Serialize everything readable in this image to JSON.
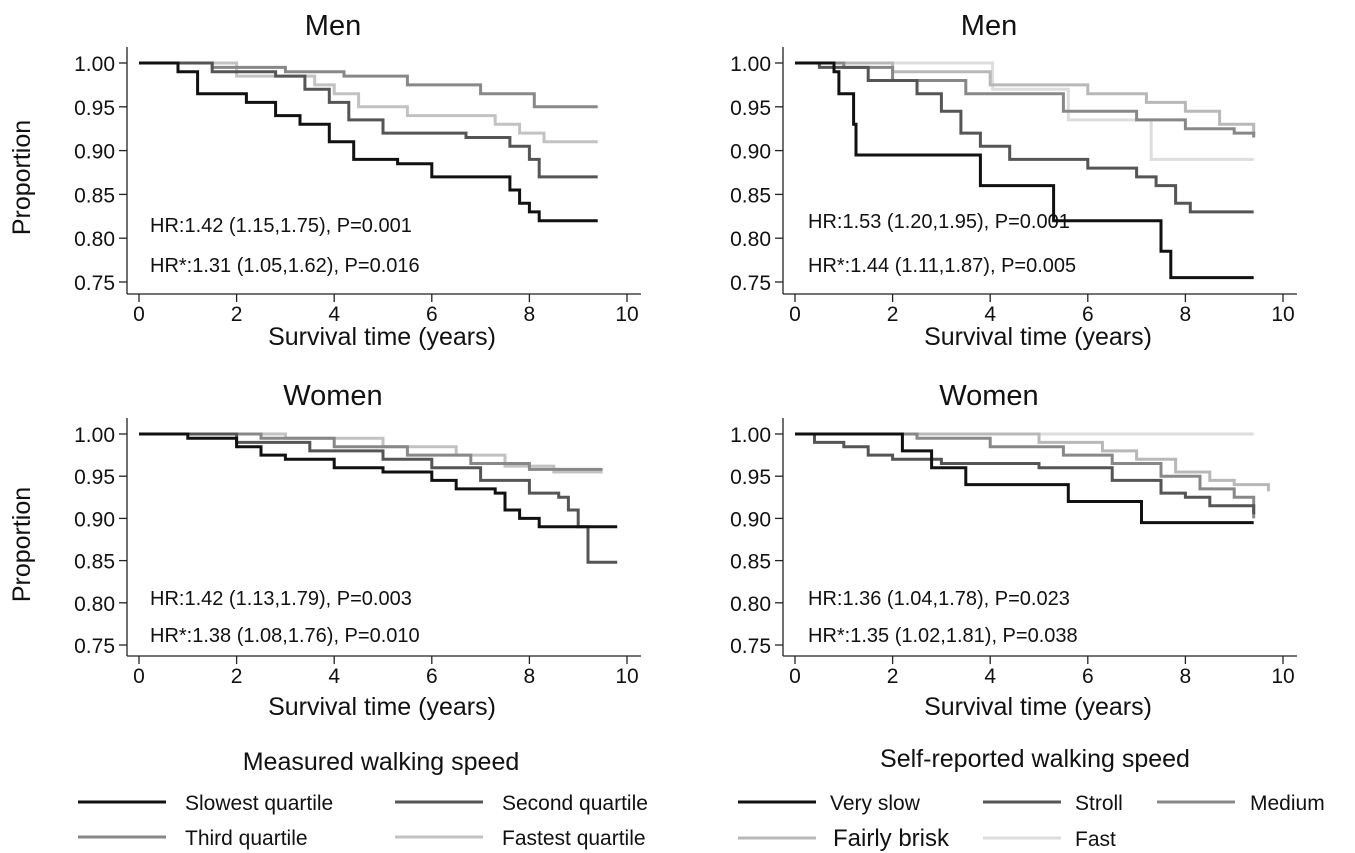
{
  "chart_data": [
    {
      "type": "line",
      "title": "Men",
      "xlabel": "Survival time (years)",
      "ylabel": "Proportion",
      "xlim": [
        0,
        10
      ],
      "ylim": [
        0.75,
        1.0
      ],
      "xticks": [
        "0",
        "2",
        "4",
        "6",
        "8",
        "10"
      ],
      "yticks": [
        "0.75",
        "0.80",
        "0.85",
        "0.90",
        "0.95",
        "1.00"
      ],
      "annotations": [
        "HR:1.42 (1.15,1.75), P=0.001",
        "HR*:1.31 (1.05,1.62), P=0.016"
      ],
      "series": [
        {
          "name": "Slowest quartile",
          "color": "#111111",
          "points": [
            [
              0,
              1.0
            ],
            [
              0.8,
              0.99
            ],
            [
              1.2,
              0.965
            ],
            [
              2.2,
              0.955
            ],
            [
              2.8,
              0.94
            ],
            [
              3.3,
              0.93
            ],
            [
              3.9,
              0.91
            ],
            [
              4.4,
              0.89
            ],
            [
              5.3,
              0.885
            ],
            [
              6.0,
              0.87
            ],
            [
              7.2,
              0.87
            ],
            [
              7.6,
              0.855
            ],
            [
              7.8,
              0.84
            ],
            [
              8.0,
              0.83
            ],
            [
              8.2,
              0.82
            ],
            [
              9.4,
              0.82
            ]
          ]
        },
        {
          "name": "Second quartile",
          "color": "#555555",
          "points": [
            [
              0,
              1.0
            ],
            [
              1.5,
              0.99
            ],
            [
              2.8,
              0.985
            ],
            [
              3.4,
              0.97
            ],
            [
              3.9,
              0.955
            ],
            [
              4.3,
              0.935
            ],
            [
              5.0,
              0.92
            ],
            [
              6.7,
              0.915
            ],
            [
              7.6,
              0.905
            ],
            [
              8.0,
              0.89
            ],
            [
              8.2,
              0.87
            ],
            [
              9.4,
              0.87
            ]
          ]
        },
        {
          "name": "Third quartile",
          "color": "#888888",
          "points": [
            [
              0,
              1.0
            ],
            [
              1.5,
              0.995
            ],
            [
              3.0,
              0.99
            ],
            [
              4.2,
              0.985
            ],
            [
              5.5,
              0.975
            ],
            [
              7.0,
              0.965
            ],
            [
              8.1,
              0.95
            ],
            [
              9.4,
              0.95
            ]
          ]
        },
        {
          "name": "Fastest quartile",
          "color": "#c2c2c2",
          "points": [
            [
              0,
              1.0
            ],
            [
              2.0,
              0.985
            ],
            [
              3.6,
              0.975
            ],
            [
              4.0,
              0.965
            ],
            [
              4.5,
              0.95
            ],
            [
              5.5,
              0.94
            ],
            [
              7.3,
              0.93
            ],
            [
              7.8,
              0.92
            ],
            [
              8.3,
              0.91
            ],
            [
              9.4,
              0.91
            ]
          ]
        }
      ]
    },
    {
      "type": "line",
      "title": "Men",
      "xlabel": "Survival time (years)",
      "ylabel": "",
      "xlim": [
        0,
        10
      ],
      "ylim": [
        0.75,
        1.0
      ],
      "xticks": [
        "0",
        "2",
        "4",
        "6",
        "8",
        "10"
      ],
      "yticks": [
        "0.75",
        "0.80",
        "0.85",
        "0.90",
        "0.95",
        "1.00"
      ],
      "annotations": [
        "HR:1.53 (1.20,1.95), P=0.001",
        "HR*:1.44 (1.11,1.87), P=0.005"
      ],
      "series": [
        {
          "name": "Very slow",
          "color": "#111111",
          "points": [
            [
              0,
              1.0
            ],
            [
              0.8,
              0.99
            ],
            [
              0.9,
              0.965
            ],
            [
              1.2,
              0.93
            ],
            [
              1.25,
              0.895
            ],
            [
              3.7,
              0.895
            ],
            [
              3.8,
              0.86
            ],
            [
              5.2,
              0.86
            ],
            [
              5.3,
              0.82
            ],
            [
              7.4,
              0.82
            ],
            [
              7.5,
              0.785
            ],
            [
              7.7,
              0.755
            ],
            [
              9.4,
              0.755
            ]
          ]
        },
        {
          "name": "Stroll",
          "color": "#555555",
          "points": [
            [
              0,
              1.0
            ],
            [
              0.5,
              0.995
            ],
            [
              1.5,
              0.98
            ],
            [
              2.5,
              0.965
            ],
            [
              3.0,
              0.945
            ],
            [
              3.4,
              0.92
            ],
            [
              3.8,
              0.905
            ],
            [
              4.4,
              0.89
            ],
            [
              6.0,
              0.88
            ],
            [
              7.0,
              0.87
            ],
            [
              7.4,
              0.86
            ],
            [
              7.8,
              0.84
            ],
            [
              8.1,
              0.83
            ],
            [
              9.4,
              0.83
            ]
          ]
        },
        {
          "name": "Medium",
          "color": "#888888",
          "points": [
            [
              0,
              1.0
            ],
            [
              1.0,
              0.995
            ],
            [
              2.0,
              0.98
            ],
            [
              3.5,
              0.965
            ],
            [
              5.5,
              0.945
            ],
            [
              7.0,
              0.935
            ],
            [
              8.0,
              0.925
            ],
            [
              9.0,
              0.92
            ],
            [
              9.4,
              0.915
            ]
          ]
        },
        {
          "name": "Fairly brisk",
          "color": "#b8b8b8",
          "points": [
            [
              0,
              1.0
            ],
            [
              2.0,
              0.99
            ],
            [
              4.0,
              0.975
            ],
            [
              6.0,
              0.965
            ],
            [
              7.2,
              0.955
            ],
            [
              8.0,
              0.945
            ],
            [
              8.7,
              0.93
            ],
            [
              9.4,
              0.918
            ]
          ]
        },
        {
          "name": "Fast",
          "color": "#dddddd",
          "points": [
            [
              0,
              1.0
            ],
            [
              4.05,
              1.0
            ],
            [
              4.05,
              0.97
            ],
            [
              5.6,
              0.97
            ],
            [
              5.6,
              0.935
            ],
            [
              7.3,
              0.935
            ],
            [
              7.3,
              0.89
            ],
            [
              9.4,
              0.89
            ]
          ]
        }
      ]
    },
    {
      "type": "line",
      "title": "Women",
      "xlabel": "Survival time (years)",
      "ylabel": "Proportion",
      "xlim": [
        0,
        10
      ],
      "ylim": [
        0.75,
        1.0
      ],
      "xticks": [
        "0",
        "2",
        "4",
        "6",
        "8",
        "10"
      ],
      "yticks": [
        "0.75",
        "0.80",
        "0.85",
        "0.90",
        "0.95",
        "1.00"
      ],
      "annotations": [
        "HR:1.42 (1.13,1.79), P=0.003",
        "HR*:1.38 (1.08,1.76), P=0.010"
      ],
      "series": [
        {
          "name": "Slowest quartile",
          "color": "#111111",
          "points": [
            [
              0,
              1.0
            ],
            [
              1.0,
              0.995
            ],
            [
              2.0,
              0.985
            ],
            [
              2.5,
              0.975
            ],
            [
              3.0,
              0.97
            ],
            [
              4.0,
              0.96
            ],
            [
              5.0,
              0.955
            ],
            [
              6.0,
              0.945
            ],
            [
              6.5,
              0.935
            ],
            [
              7.3,
              0.93
            ],
            [
              7.5,
              0.91
            ],
            [
              7.8,
              0.9
            ],
            [
              8.2,
              0.89
            ],
            [
              9.8,
              0.89
            ]
          ]
        },
        {
          "name": "Second quartile",
          "color": "#555555",
          "points": [
            [
              0,
              1.0
            ],
            [
              2.0,
              0.99
            ],
            [
              3.5,
              0.98
            ],
            [
              5.0,
              0.97
            ],
            [
              6.0,
              0.96
            ],
            [
              7.0,
              0.945
            ],
            [
              8.0,
              0.93
            ],
            [
              8.6,
              0.925
            ],
            [
              8.8,
              0.91
            ],
            [
              9.0,
              0.89
            ],
            [
              9.2,
              0.848
            ],
            [
              9.8,
              0.848
            ]
          ]
        },
        {
          "name": "Third quartile",
          "color": "#888888",
          "points": [
            [
              0,
              1.0
            ],
            [
              2.5,
              0.995
            ],
            [
              4.0,
              0.985
            ],
            [
              5.5,
              0.975
            ],
            [
              6.8,
              0.965
            ],
            [
              8.0,
              0.958
            ],
            [
              9.5,
              0.958
            ]
          ]
        },
        {
          "name": "Fastest quartile",
          "color": "#c2c2c2",
          "points": [
            [
              0,
              1.0
            ],
            [
              3.0,
              0.995
            ],
            [
              5.0,
              0.985
            ],
            [
              6.5,
              0.975
            ],
            [
              7.5,
              0.962
            ],
            [
              8.5,
              0.955
            ],
            [
              9.5,
              0.955
            ]
          ]
        }
      ]
    },
    {
      "type": "line",
      "title": "Women",
      "xlabel": "Survival time (years)",
      "ylabel": "",
      "xlim": [
        0,
        10
      ],
      "ylim": [
        0.75,
        1.0
      ],
      "xticks": [
        "0",
        "2",
        "4",
        "6",
        "8",
        "10"
      ],
      "yticks": [
        "0.75",
        "0.80",
        "0.85",
        "0.90",
        "0.95",
        "1.00"
      ],
      "annotations": [
        "HR:1.36 (1.04,1.78), P=0.023",
        "HR*:1.35 (1.02,1.81), P=0.038"
      ],
      "series": [
        {
          "name": "Very slow",
          "color": "#111111",
          "points": [
            [
              0,
              1.0
            ],
            [
              2.2,
              0.995
            ],
            [
              2.2,
              0.98
            ],
            [
              2.8,
              0.98
            ],
            [
              2.8,
              0.96
            ],
            [
              3.5,
              0.96
            ],
            [
              3.5,
              0.94
            ],
            [
              5.6,
              0.94
            ],
            [
              5.6,
              0.92
            ],
            [
              7.1,
              0.92
            ],
            [
              7.1,
              0.895
            ],
            [
              9.4,
              0.895
            ]
          ]
        },
        {
          "name": "Stroll",
          "color": "#555555",
          "points": [
            [
              0,
              1.0
            ],
            [
              0.4,
              0.99
            ],
            [
              1.0,
              0.985
            ],
            [
              1.5,
              0.975
            ],
            [
              2.0,
              0.97
            ],
            [
              3.0,
              0.965
            ],
            [
              5.0,
              0.96
            ],
            [
              6.5,
              0.945
            ],
            [
              7.5,
              0.93
            ],
            [
              8.0,
              0.925
            ],
            [
              8.5,
              0.915
            ],
            [
              9.4,
              0.905
            ]
          ]
        },
        {
          "name": "Medium",
          "color": "#888888",
          "points": [
            [
              0,
              1.0
            ],
            [
              2.5,
              0.995
            ],
            [
              4.0,
              0.985
            ],
            [
              5.5,
              0.975
            ],
            [
              6.5,
              0.965
            ],
            [
              7.5,
              0.95
            ],
            [
              8.3,
              0.935
            ],
            [
              9.0,
              0.925
            ],
            [
              9.4,
              0.9
            ]
          ]
        },
        {
          "name": "Fairly brisk",
          "color": "#b8b8b8",
          "points": [
            [
              0,
              1.0
            ],
            [
              3.5,
              1.0
            ],
            [
              5.0,
              0.99
            ],
            [
              6.3,
              0.98
            ],
            [
              7.0,
              0.97
            ],
            [
              7.8,
              0.955
            ],
            [
              8.5,
              0.945
            ],
            [
              9.0,
              0.94
            ],
            [
              9.7,
              0.932
            ]
          ]
        },
        {
          "name": "Fast",
          "color": "#dddddd",
          "points": [
            [
              0,
              1.0
            ],
            [
              9.4,
              1.0
            ]
          ]
        }
      ]
    }
  ],
  "legends": [
    {
      "title": "Measured walking speed",
      "items": [
        {
          "label": "Slowest quartile",
          "color": "#111111"
        },
        {
          "label": "Second quartile",
          "color": "#555555"
        },
        {
          "label": "Third quartile",
          "color": "#888888"
        },
        {
          "label": "Fastest quartile",
          "color": "#c2c2c2"
        }
      ]
    },
    {
      "title": "Self-reported walking speed",
      "items": [
        {
          "label": "Very slow",
          "color": "#111111"
        },
        {
          "label": "Stroll",
          "color": "#555555"
        },
        {
          "label": "Medium",
          "color": "#888888"
        },
        {
          "label": "Fairly brisk",
          "color": "#b8b8b8"
        },
        {
          "label": "Fast",
          "color": "#dddddd"
        }
      ]
    }
  ]
}
